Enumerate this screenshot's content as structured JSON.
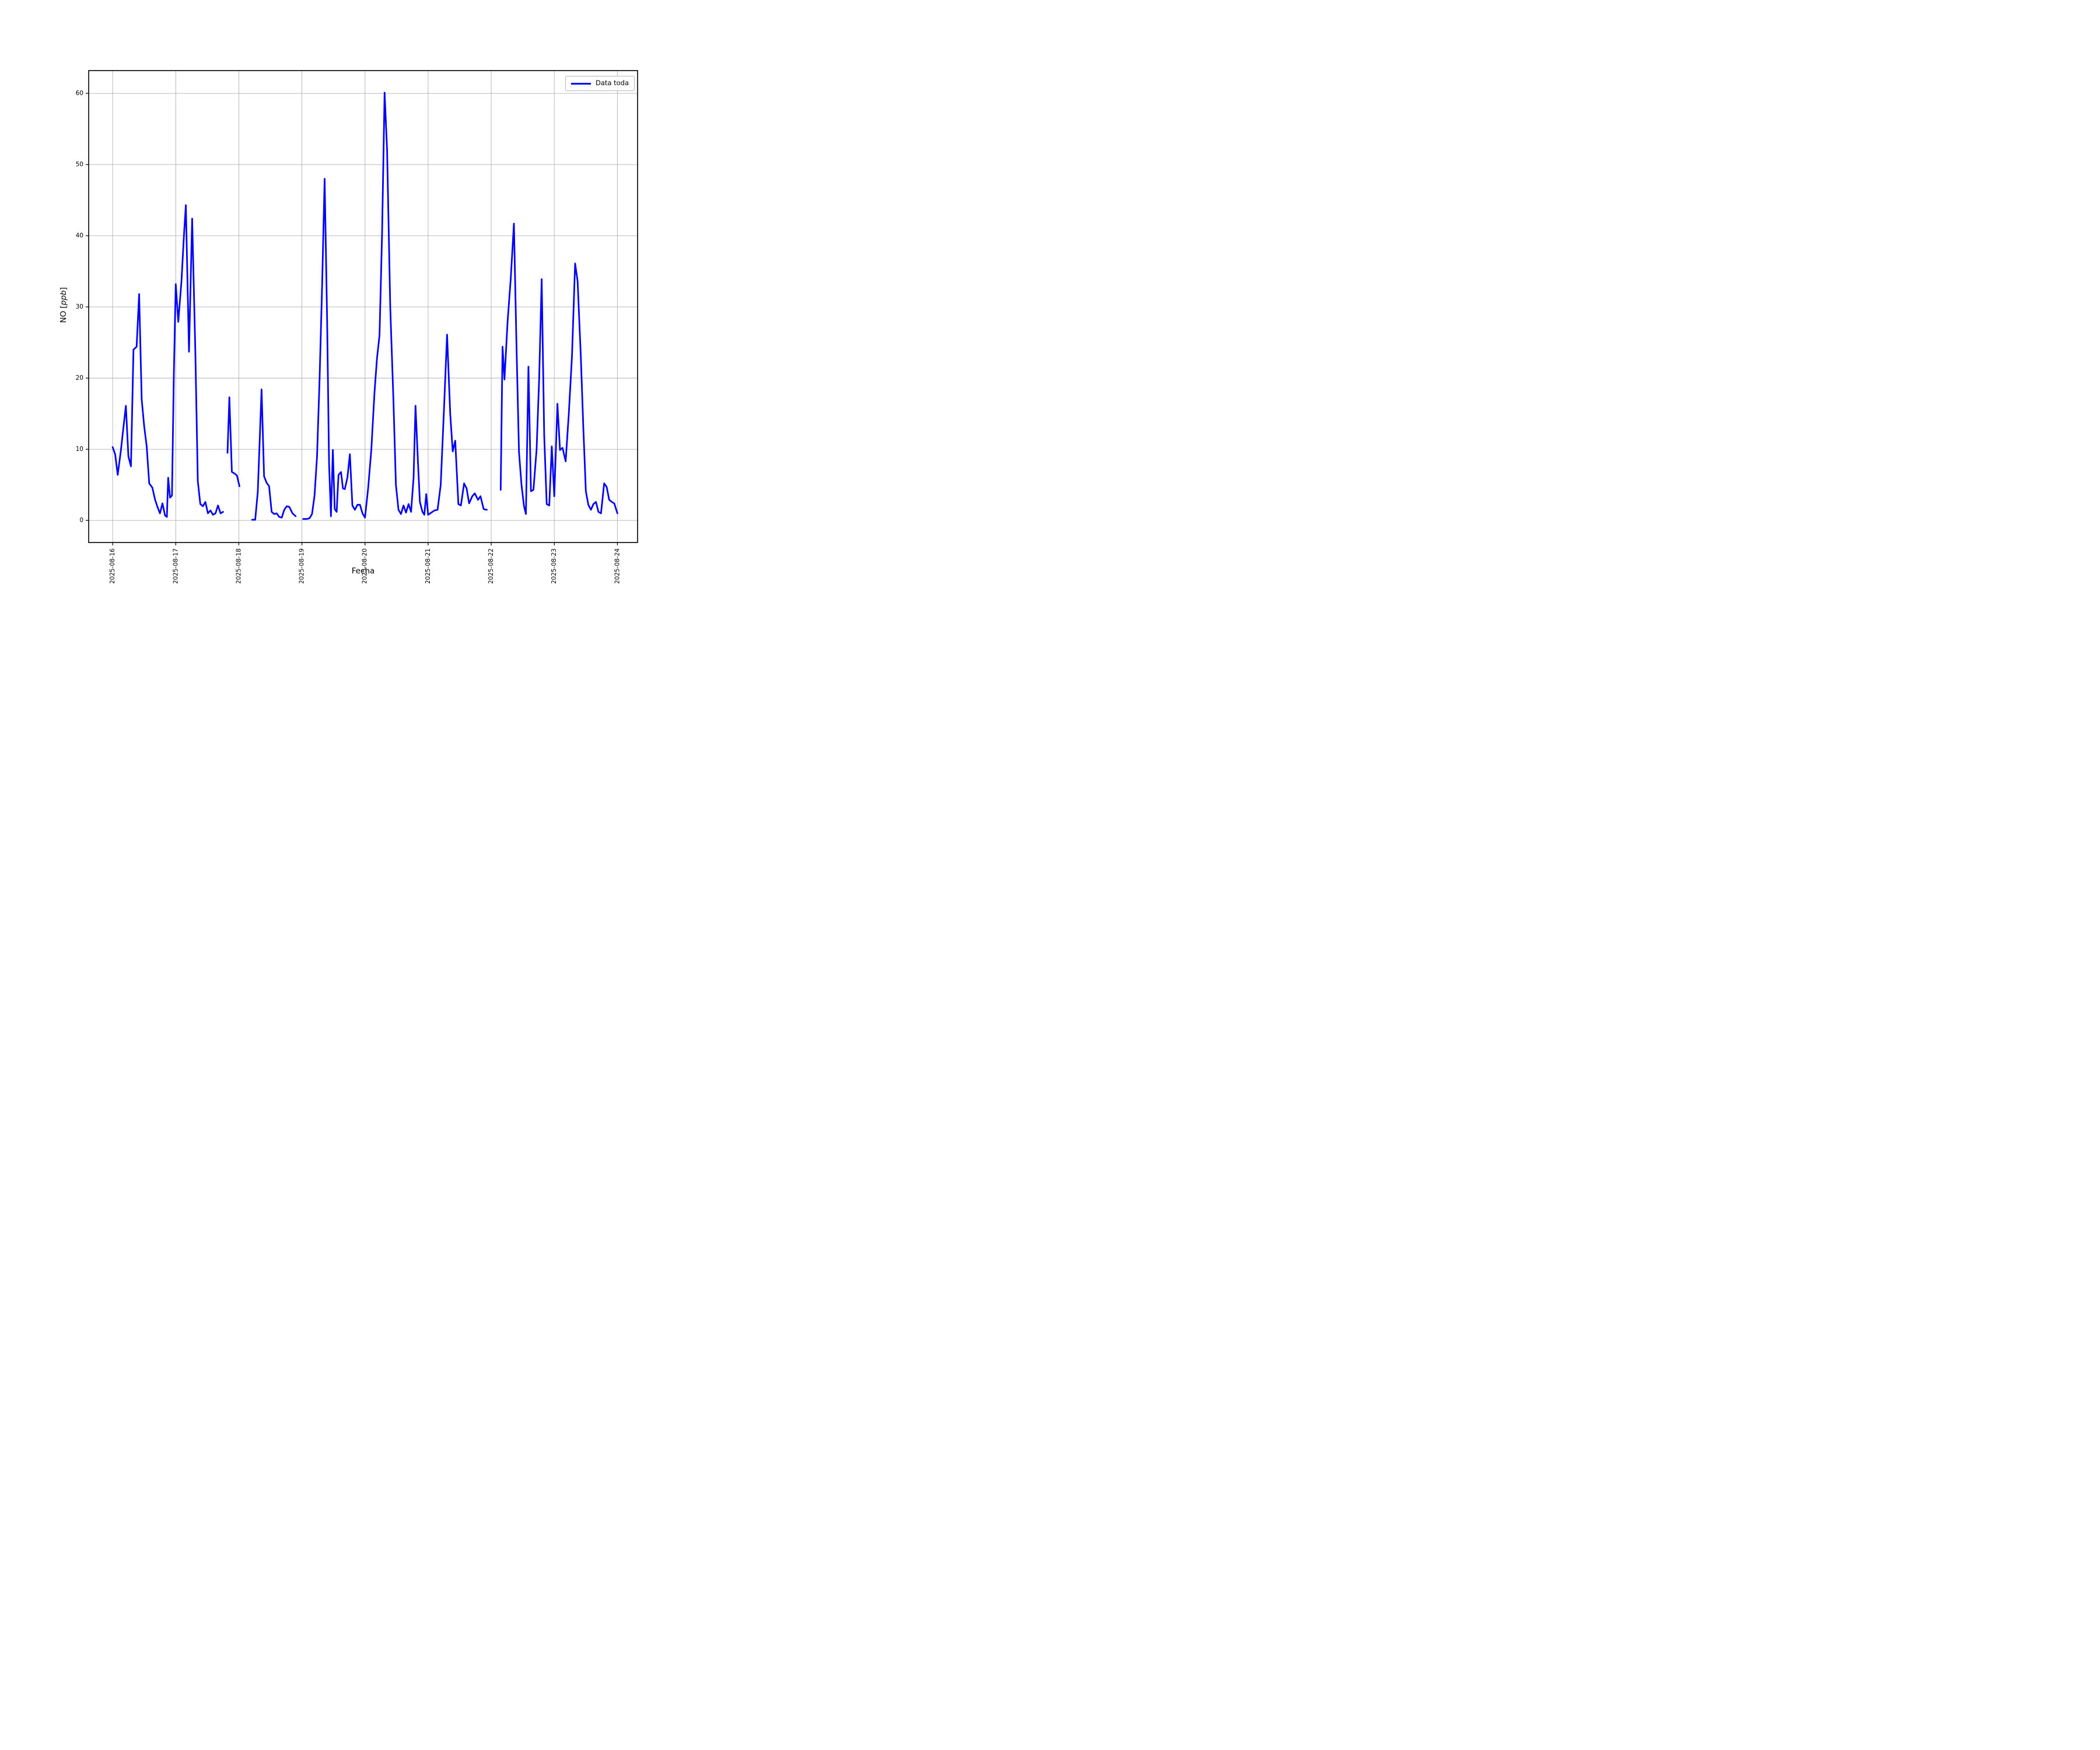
{
  "window": {
    "background": "#ffffff"
  },
  "labels": {
    "ylabel_prefix": "NO [",
    "ylabel_italic": "ppb",
    "ylabel_suffix": "]"
  },
  "chart_data": {
    "type": "line",
    "title": "",
    "xlabel": "Fecha",
    "ylabel": "NO [ppb]",
    "grid": true,
    "legend_position": "upper right",
    "axis_color": "#000000",
    "grid_color": "#b0b0b0",
    "x_tick_labels": [
      "2025-08-16",
      "2025-08-17",
      "2025-08-18",
      "2025-08-19",
      "2025-08-20",
      "2025-08-21",
      "2025-08-22",
      "2025-08-23",
      "2025-08-24"
    ],
    "x_tick_positions": [
      0,
      1,
      2,
      3,
      4,
      5,
      6,
      7,
      8
    ],
    "y_ticks": [
      0,
      10,
      20,
      30,
      40,
      50,
      60
    ],
    "xlim": [
      -0.38,
      8.32
    ],
    "ylim": [
      -3.1,
      63.2
    ],
    "x_unit_note": "days since 2025-08-16 00:00",
    "series": [
      {
        "name": "Data toda",
        "color": "#0000ff",
        "segments": [
          [
            [
              0.0,
              10.3
            ],
            [
              0.04,
              9.3
            ],
            [
              0.08,
              6.4
            ],
            [
              0.13,
              9.8
            ],
            [
              0.17,
              13.0
            ],
            [
              0.21,
              16.1
            ],
            [
              0.25,
              9.0
            ],
            [
              0.29,
              7.6
            ],
            [
              0.33,
              24.0
            ],
            [
              0.38,
              24.4
            ],
            [
              0.42,
              31.8
            ],
            [
              0.46,
              17.0
            ],
            [
              0.5,
              13.2
            ],
            [
              0.54,
              10.4
            ],
            [
              0.58,
              5.2
            ],
            [
              0.63,
              4.6
            ],
            [
              0.67,
              3.0
            ],
            [
              0.71,
              1.9
            ],
            [
              0.75,
              1.0
            ],
            [
              0.79,
              2.4
            ],
            [
              0.83,
              0.7
            ],
            [
              0.86,
              0.5
            ],
            [
              0.88,
              6.0
            ],
            [
              0.91,
              3.2
            ],
            [
              0.94,
              3.5
            ],
            [
              0.97,
              20.5
            ],
            [
              1.0,
              33.2
            ],
            [
              1.04,
              27.9
            ],
            [
              1.09,
              33.5
            ],
            [
              1.13,
              40.0
            ],
            [
              1.16,
              44.3
            ],
            [
              1.21,
              23.7
            ],
            [
              1.26,
              42.4
            ],
            [
              1.31,
              24.0
            ],
            [
              1.35,
              5.5
            ],
            [
              1.39,
              2.3
            ],
            [
              1.43,
              2.0
            ],
            [
              1.47,
              2.6
            ],
            [
              1.51,
              1.0
            ],
            [
              1.55,
              1.4
            ],
            [
              1.59,
              0.8
            ],
            [
              1.63,
              1.0
            ],
            [
              1.67,
              2.1
            ],
            [
              1.71,
              1.0
            ],
            [
              1.75,
              1.2
            ]
          ],
          [
            [
              1.82,
              9.5
            ],
            [
              1.85,
              17.3
            ],
            [
              1.89,
              6.8
            ],
            [
              1.93,
              6.6
            ],
            [
              1.97,
              6.3
            ],
            [
              2.01,
              4.8
            ]
          ],
          [
            [
              2.21,
              0.1
            ],
            [
              2.26,
              0.1
            ],
            [
              2.3,
              4.0
            ],
            [
              2.33,
              11.0
            ],
            [
              2.36,
              18.4
            ],
            [
              2.4,
              6.2
            ],
            [
              2.44,
              5.3
            ],
            [
              2.48,
              4.8
            ],
            [
              2.52,
              1.2
            ],
            [
              2.56,
              0.9
            ],
            [
              2.6,
              1.0
            ],
            [
              2.64,
              0.5
            ],
            [
              2.68,
              0.4
            ],
            [
              2.72,
              1.5
            ],
            [
              2.76,
              2.0
            ],
            [
              2.8,
              1.9
            ],
            [
              2.85,
              1.0
            ],
            [
              2.9,
              0.6
            ]
          ],
          [
            [
              3.02,
              0.2
            ],
            [
              3.07,
              0.2
            ],
            [
              3.12,
              0.3
            ],
            [
              3.16,
              0.9
            ],
            [
              3.2,
              3.5
            ],
            [
              3.24,
              9.0
            ],
            [
              3.28,
              20.0
            ],
            [
              3.32,
              33.0
            ],
            [
              3.36,
              48.0
            ],
            [
              3.4,
              28.0
            ],
            [
              3.43,
              8.0
            ],
            [
              3.46,
              0.6
            ],
            [
              3.49,
              9.9
            ],
            [
              3.52,
              1.6
            ],
            [
              3.55,
              1.2
            ],
            [
              3.58,
              6.4
            ],
            [
              3.62,
              6.8
            ],
            [
              3.65,
              4.5
            ],
            [
              3.68,
              4.4
            ],
            [
              3.72,
              6.0
            ],
            [
              3.76,
              9.3
            ],
            [
              3.8,
              2.1
            ],
            [
              3.84,
              1.5
            ],
            [
              3.88,
              2.2
            ],
            [
              3.92,
              2.2
            ],
            [
              3.96,
              1.0
            ],
            [
              4.0,
              0.4
            ],
            [
              4.05,
              4.6
            ],
            [
              4.1,
              10.0
            ],
            [
              4.15,
              18.0
            ],
            [
              4.19,
              22.8
            ],
            [
              4.23,
              26.0
            ],
            [
              4.27,
              40.0
            ],
            [
              4.31,
              60.1
            ],
            [
              4.35,
              52.0
            ],
            [
              4.4,
              30.0
            ],
            [
              4.45,
              17.0
            ],
            [
              4.49,
              5.0
            ],
            [
              4.53,
              1.5
            ],
            [
              4.57,
              0.9
            ],
            [
              4.61,
              2.1
            ],
            [
              4.65,
              1.1
            ],
            [
              4.69,
              2.3
            ],
            [
              4.73,
              1.2
            ],
            [
              4.77,
              6.0
            ],
            [
              4.8,
              16.1
            ],
            [
              4.84,
              8.0
            ],
            [
              4.87,
              2.6
            ],
            [
              4.91,
              1.2
            ],
            [
              4.94,
              0.8
            ],
            [
              4.97,
              3.7
            ],
            [
              5.0,
              0.8
            ],
            [
              5.05,
              1.1
            ],
            [
              5.1,
              1.4
            ],
            [
              5.15,
              1.5
            ],
            [
              5.2,
              5.0
            ],
            [
              5.25,
              15.2
            ],
            [
              5.3,
              26.1
            ],
            [
              5.35,
              15.0
            ],
            [
              5.39,
              9.7
            ],
            [
              5.43,
              11.2
            ],
            [
              5.48,
              2.3
            ],
            [
              5.52,
              2.1
            ],
            [
              5.57,
              5.2
            ],
            [
              5.61,
              4.5
            ],
            [
              5.65,
              2.4
            ],
            [
              5.7,
              3.4
            ],
            [
              5.74,
              3.8
            ],
            [
              5.79,
              2.9
            ],
            [
              5.83,
              3.4
            ],
            [
              5.88,
              1.6
            ],
            [
              5.93,
              1.5
            ]
          ],
          [
            [
              6.15,
              4.3
            ],
            [
              6.18,
              24.4
            ],
            [
              6.21,
              19.8
            ],
            [
              6.26,
              28.0
            ],
            [
              6.31,
              34.0
            ],
            [
              6.36,
              41.7
            ],
            [
              6.4,
              25.0
            ],
            [
              6.44,
              9.6
            ],
            [
              6.48,
              5.0
            ],
            [
              6.52,
              2.0
            ],
            [
              6.55,
              0.9
            ],
            [
              6.59,
              21.6
            ],
            [
              6.63,
              4.1
            ],
            [
              6.67,
              4.3
            ],
            [
              6.72,
              10.0
            ],
            [
              6.76,
              20.0
            ],
            [
              6.8,
              33.9
            ],
            [
              6.84,
              12.0
            ],
            [
              6.88,
              2.3
            ],
            [
              6.92,
              2.1
            ],
            [
              6.96,
              10.4
            ],
            [
              7.0,
              3.4
            ],
            [
              7.05,
              16.4
            ],
            [
              7.09,
              9.9
            ],
            [
              7.13,
              10.2
            ],
            [
              7.18,
              8.3
            ],
            [
              7.23,
              15.0
            ],
            [
              7.28,
              23.0
            ],
            [
              7.33,
              36.1
            ],
            [
              7.37,
              33.6
            ],
            [
              7.42,
              23.0
            ],
            [
              7.46,
              13.0
            ],
            [
              7.5,
              4.1
            ],
            [
              7.54,
              2.2
            ],
            [
              7.58,
              1.5
            ],
            [
              7.62,
              2.3
            ],
            [
              7.66,
              2.6
            ],
            [
              7.7,
              1.2
            ],
            [
              7.74,
              1.0
            ],
            [
              7.79,
              5.2
            ],
            [
              7.83,
              4.7
            ],
            [
              7.87,
              2.9
            ],
            [
              7.91,
              2.6
            ],
            [
              7.95,
              2.4
            ],
            [
              8.0,
              1.0
            ]
          ]
        ]
      }
    ]
  }
}
